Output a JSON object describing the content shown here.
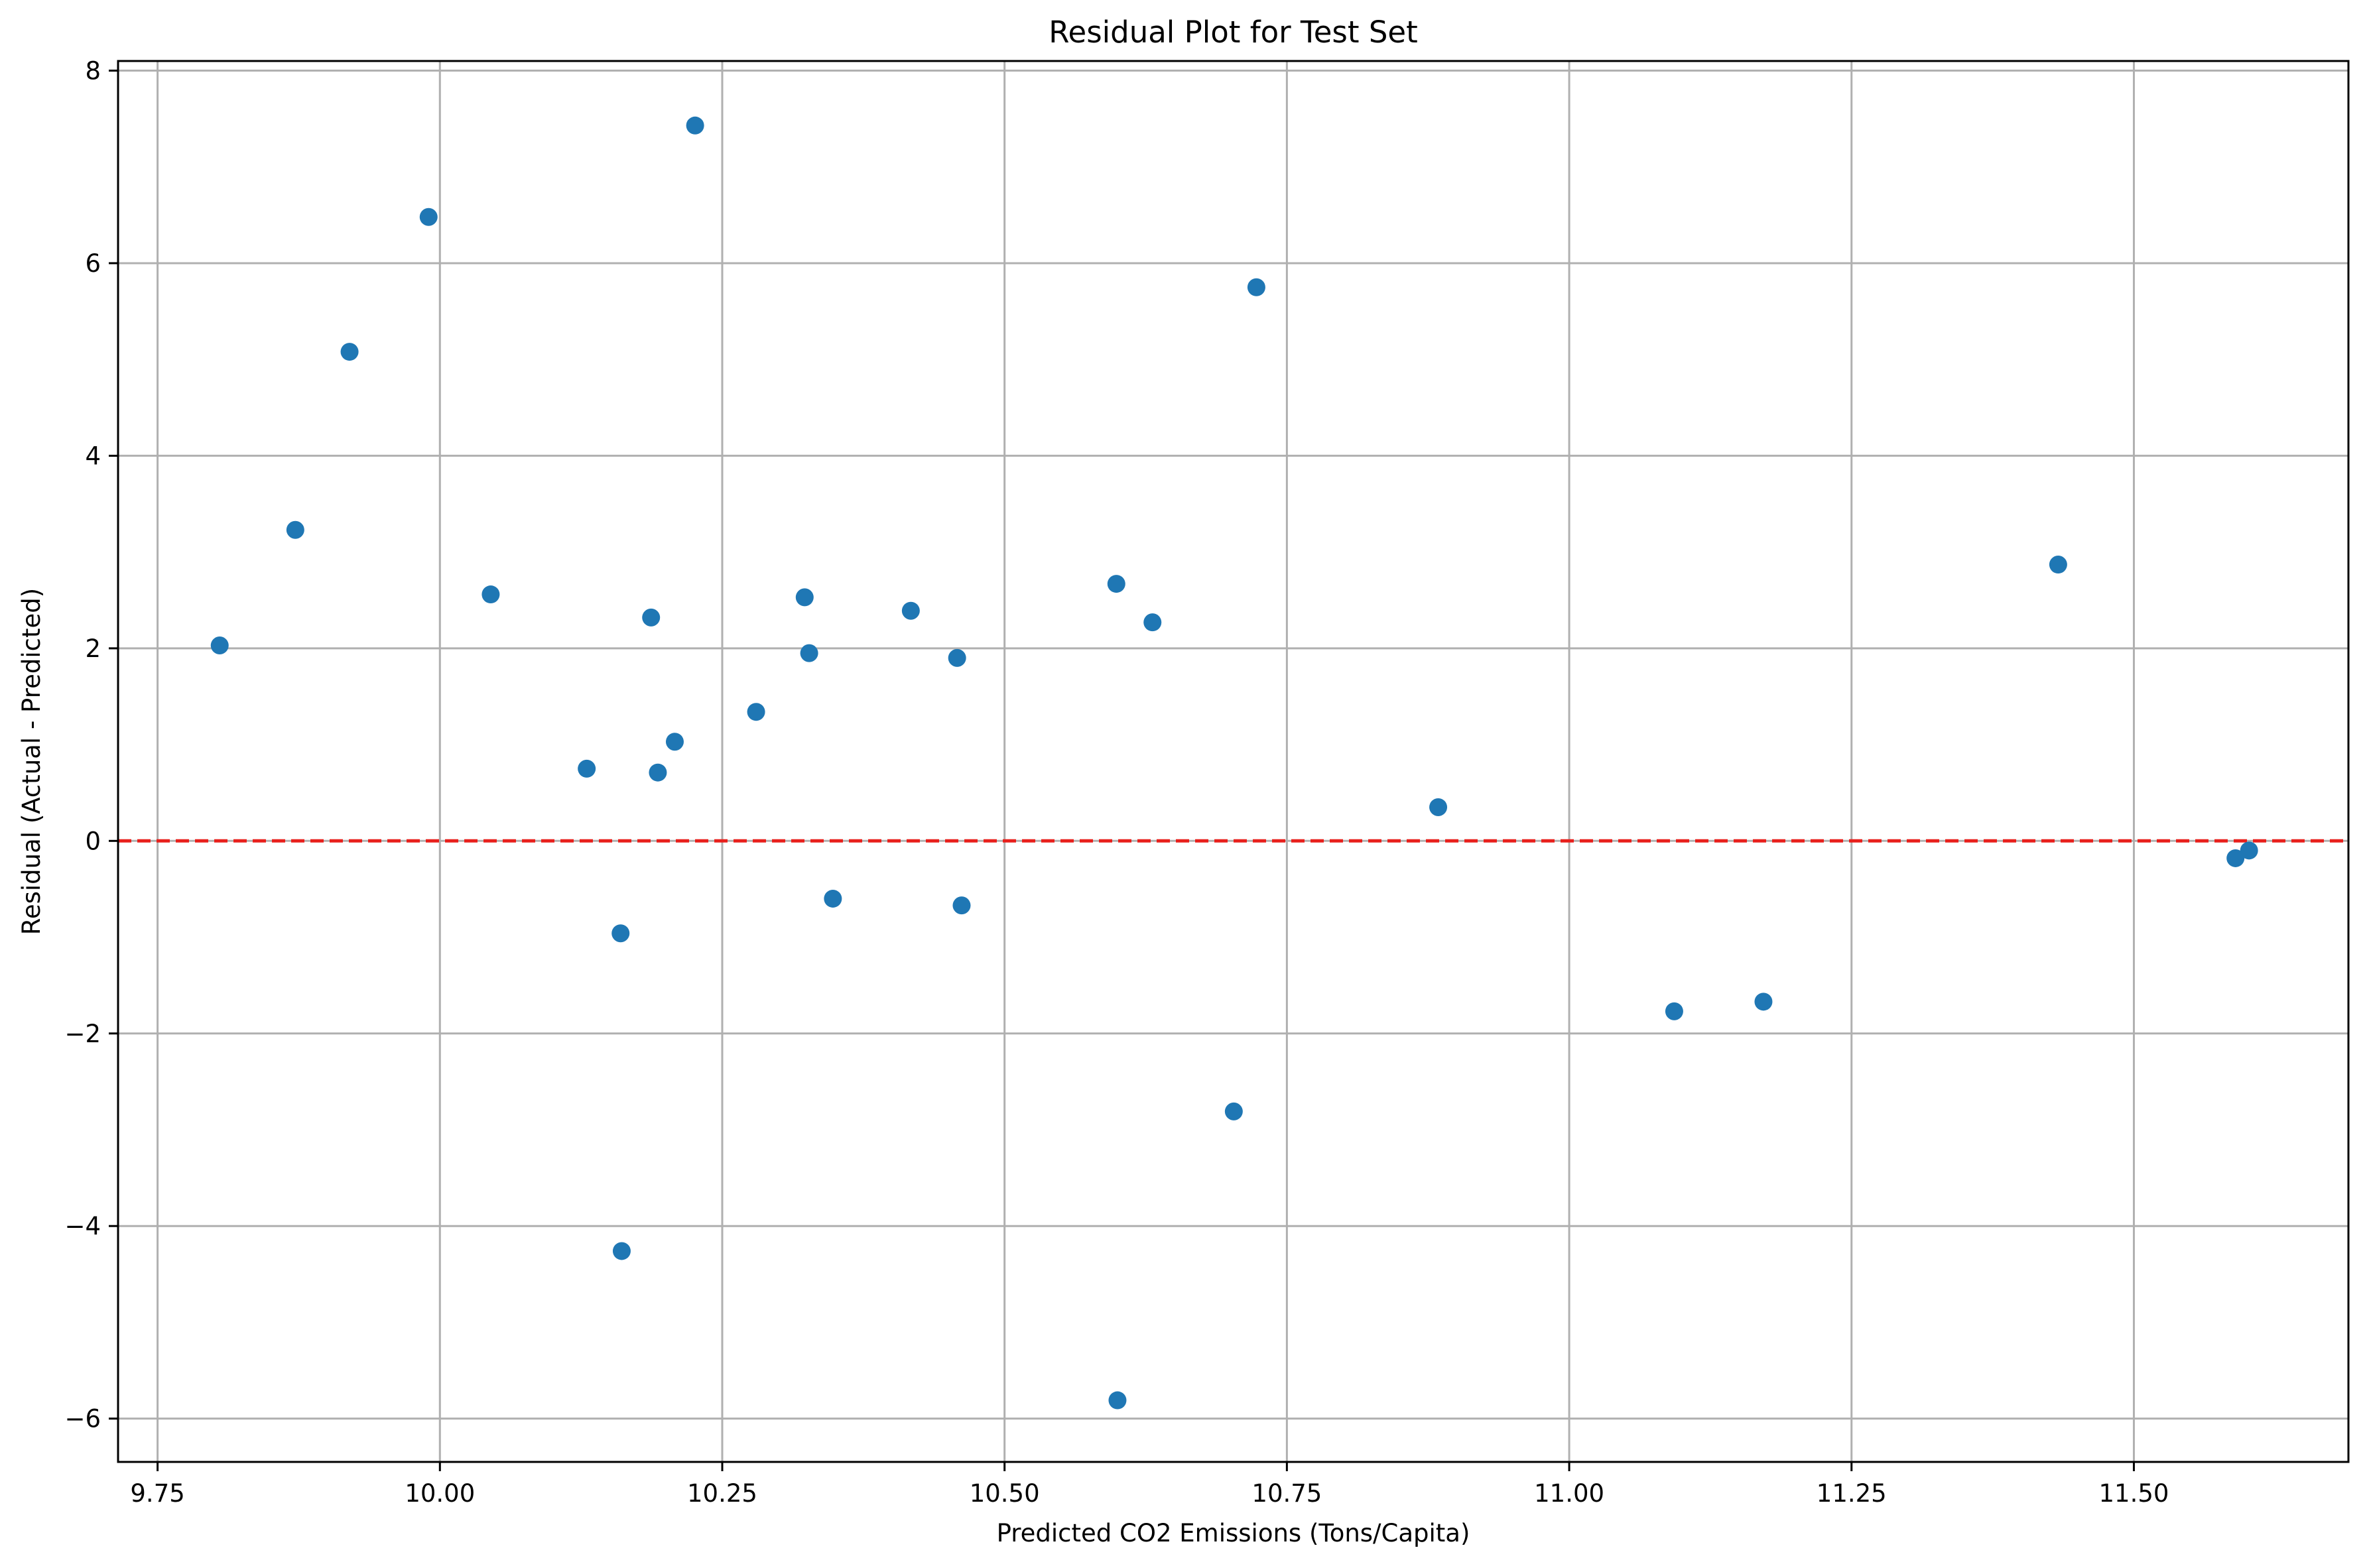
{
  "chart_data": {
    "type": "scatter",
    "title": "Residual Plot for Test Set",
    "xlabel": "Predicted CO2 Emissions (Tons/Capita)",
    "ylabel": "Residual (Actual - Predicted)",
    "xlim": [
      9.715,
      11.69
    ],
    "ylim": [
      -6.45,
      8.1
    ],
    "x_ticks": [
      9.75,
      10.0,
      10.25,
      10.5,
      10.75,
      11.0,
      11.25,
      11.5
    ],
    "x_tick_labels": [
      "9.75",
      "10.00",
      "10.25",
      "10.50",
      "10.75",
      "11.00",
      "11.25",
      "11.50"
    ],
    "y_ticks": [
      -6,
      -4,
      -2,
      0,
      2,
      4,
      6,
      8
    ],
    "y_tick_labels": [
      "−6",
      "−4",
      "−2",
      "0",
      "2",
      "4",
      "6",
      "8"
    ],
    "grid": true,
    "reference_line": {
      "y": 0,
      "style": "dashed",
      "color": "#e8201c"
    },
    "marker_color": "#1f77b4",
    "points": [
      {
        "x": 9.805,
        "y": 2.03
      },
      {
        "x": 9.872,
        "y": 3.23
      },
      {
        "x": 9.92,
        "y": 5.08
      },
      {
        "x": 9.99,
        "y": 6.48
      },
      {
        "x": 10.045,
        "y": 2.56
      },
      {
        "x": 10.13,
        "y": 0.75
      },
      {
        "x": 10.16,
        "y": -0.96
      },
      {
        "x": 10.161,
        "y": -4.26
      },
      {
        "x": 10.187,
        "y": 2.32
      },
      {
        "x": 10.193,
        "y": 0.71
      },
      {
        "x": 10.208,
        "y": 1.03
      },
      {
        "x": 10.226,
        "y": 7.43
      },
      {
        "x": 10.28,
        "y": 1.34
      },
      {
        "x": 10.323,
        "y": 2.53
      },
      {
        "x": 10.327,
        "y": 1.95
      },
      {
        "x": 10.348,
        "y": -0.6
      },
      {
        "x": 10.417,
        "y": 2.39
      },
      {
        "x": 10.458,
        "y": 1.9
      },
      {
        "x": 10.462,
        "y": -0.67
      },
      {
        "x": 10.599,
        "y": 2.67
      },
      {
        "x": 10.6,
        "y": -5.81
      },
      {
        "x": 10.631,
        "y": 2.27
      },
      {
        "x": 10.703,
        "y": -2.81
      },
      {
        "x": 10.723,
        "y": 5.75
      },
      {
        "x": 10.884,
        "y": 0.35
      },
      {
        "x": 11.093,
        "y": -1.77
      },
      {
        "x": 11.172,
        "y": -1.67
      },
      {
        "x": 11.433,
        "y": 2.87
      },
      {
        "x": 11.59,
        "y": -0.18
      },
      {
        "x": 11.602,
        "y": -0.1
      }
    ]
  }
}
